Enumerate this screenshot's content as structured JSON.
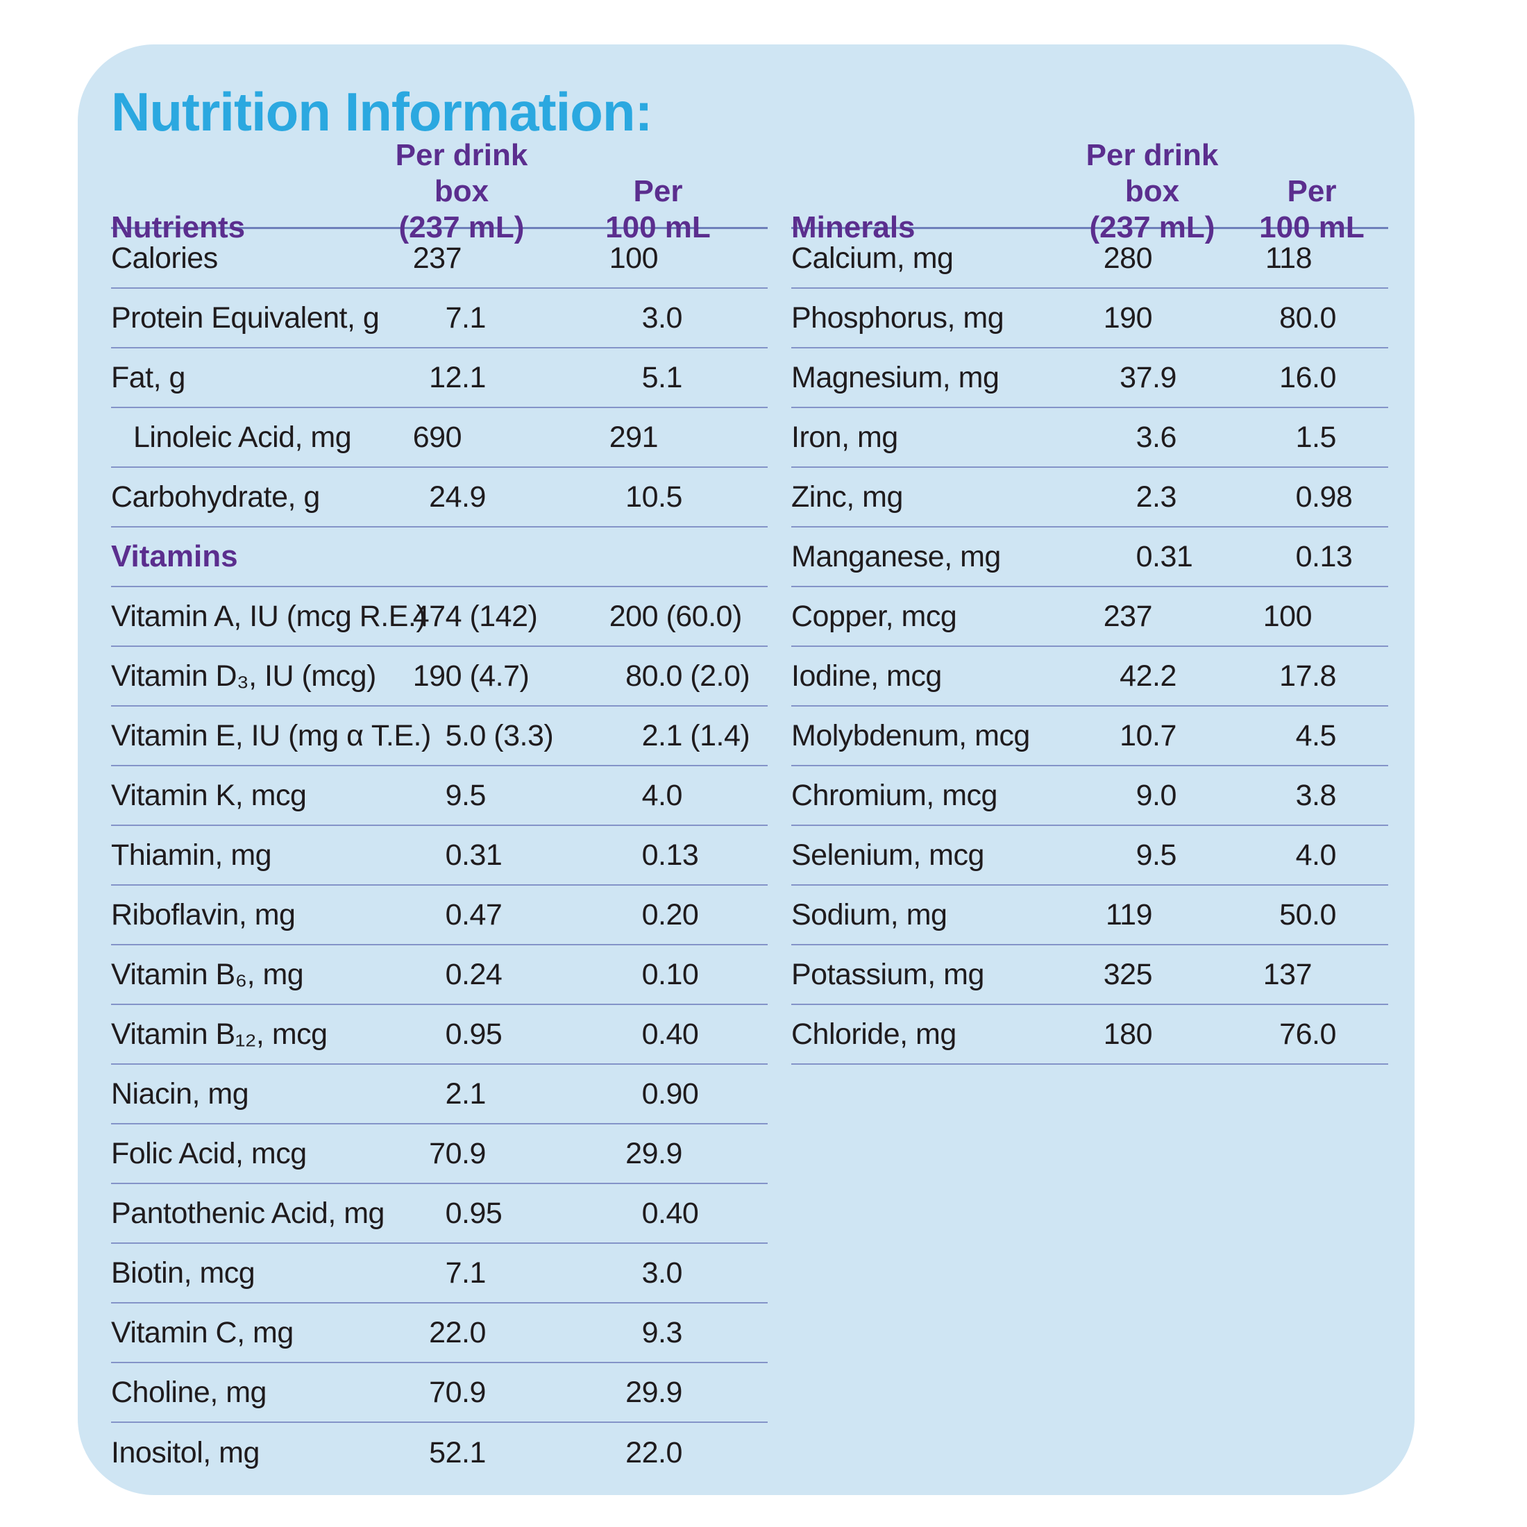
{
  "title": "Nutrition Information:",
  "colors": {
    "card_background": "#CFE5F3",
    "title_blue": "#2BA8E0",
    "header_purple": "#5B2E8E",
    "body_text": "#1F1B1D",
    "rule_line": "#8494C8"
  },
  "tables": [
    {
      "id": "nutrients",
      "header": {
        "label": "Nutrients",
        "col1_line1": "Per drink box",
        "col1_line2": "(237 mL)",
        "col2_line1": "Per",
        "col2_line2": "100 mL"
      },
      "rows": [
        {
          "label": "Calories",
          "v1": "237",
          "v2": "100"
        },
        {
          "label": "Protein Equivalent, g",
          "v1": "7.1",
          "v2": "3.0"
        },
        {
          "label": "Fat, g",
          "v1": "12.1",
          "v2": "5.1"
        },
        {
          "label": "Linoleic Acid, mg",
          "v1": "690",
          "v2": "291",
          "indent": true
        },
        {
          "label": "Carbohydrate, g",
          "v1": "24.9",
          "v2": "10.5"
        },
        {
          "section": "Vitamins"
        },
        {
          "label": "Vitamin A, IU (mcg R.E.)",
          "v1": "474 (142)",
          "v2": "200 (60.0)"
        },
        {
          "label": "Vitamin D₃, IU (mcg)",
          "v1": "190 (4.7)",
          "v2": "80.0 (2.0)"
        },
        {
          "label": "Vitamin E, IU (mg α T.E.)",
          "v1": "5.0 (3.3)",
          "v2": "2.1 (1.4)"
        },
        {
          "label": "Vitamin K, mcg",
          "v1": "9.5",
          "v2": "4.0"
        },
        {
          "label": "Thiamin, mg",
          "v1": "0.31",
          "v2": "0.13"
        },
        {
          "label": "Riboflavin, mg",
          "v1": "0.47",
          "v2": "0.20"
        },
        {
          "label": "Vitamin B₆, mg",
          "v1": "0.24",
          "v2": "0.10"
        },
        {
          "label": "Vitamin B₁₂, mcg",
          "v1": "0.95",
          "v2": "0.40"
        },
        {
          "label": "Niacin, mg",
          "v1": "2.1",
          "v2": "0.90"
        },
        {
          "label": "Folic Acid, mcg",
          "v1": "70.9",
          "v2": "29.9"
        },
        {
          "label": "Pantothenic Acid, mg",
          "v1": "0.95",
          "v2": "0.40"
        },
        {
          "label": "Biotin, mcg",
          "v1": "7.1",
          "v2": "3.0"
        },
        {
          "label": "Vitamin C, mg",
          "v1": "22.0",
          "v2": "9.3"
        },
        {
          "label": "Choline, mg",
          "v1": "70.9",
          "v2": "29.9"
        },
        {
          "label": "Inositol, mg",
          "v1": "52.1",
          "v2": "22.0",
          "last": true
        }
      ]
    },
    {
      "id": "minerals",
      "header": {
        "label": "Minerals",
        "col1_line1": "Per drink box",
        "col1_line2": "(237 mL)",
        "col2_line1": "Per",
        "col2_line2": "100 mL"
      },
      "rows": [
        {
          "label": "Calcium, mg",
          "v1": "280",
          "v2": "118"
        },
        {
          "label": "Phosphorus, mg",
          "v1": "190",
          "v2": "80.0"
        },
        {
          "label": "Magnesium, mg",
          "v1": "37.9",
          "v2": "16.0"
        },
        {
          "label": "Iron, mg",
          "v1": "3.6",
          "v2": "1.5"
        },
        {
          "label": "Zinc, mg",
          "v1": "2.3",
          "v2": "0.98"
        },
        {
          "label": "Manganese, mg",
          "v1": "0.31",
          "v2": "0.13"
        },
        {
          "label": "Copper, mcg",
          "v1": "237",
          "v2": "100"
        },
        {
          "label": "Iodine, mcg",
          "v1": "42.2",
          "v2": "17.8"
        },
        {
          "label": "Molybdenum, mcg",
          "v1": "10.7",
          "v2": "4.5"
        },
        {
          "label": "Chromium, mcg",
          "v1": "9.0",
          "v2": "3.8"
        },
        {
          "label": "Selenium, mcg",
          "v1": "9.5",
          "v2": "4.0"
        },
        {
          "label": "Sodium, mg",
          "v1": "119",
          "v2": "50.0"
        },
        {
          "label": "Potassium, mg",
          "v1": "325",
          "v2": "137"
        },
        {
          "label": "Chloride, mg",
          "v1": "180",
          "v2": "76.0"
        }
      ]
    }
  ]
}
